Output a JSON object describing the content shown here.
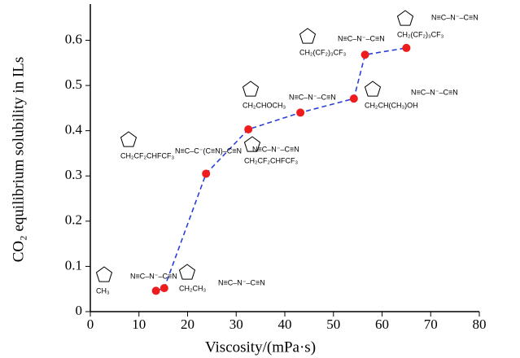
{
  "chart_data": {
    "type": "scatter",
    "x_label": "Viscosity/(mPa·s)",
    "y_label": "CO₂ equilibrium solubility in ILs",
    "series": [
      {
        "color": "#ee1c1c",
        "line_color": "#2a3fd8",
        "x": [
          13.5,
          15.2,
          23.8,
          32.5,
          43.2,
          54.2,
          56.5,
          65.0
        ],
        "values": [
          0.046,
          0.052,
          0.305,
          0.403,
          0.44,
          0.471,
          0.568,
          0.583
        ]
      }
    ],
    "xlim": [
      0,
      80
    ],
    "xticks": [
      0,
      10,
      20,
      30,
      40,
      50,
      60,
      70,
      80
    ],
    "ylim": [
      0,
      0.68
    ],
    "yticks": [
      0,
      0.1,
      0.2,
      0.3,
      0.4,
      0.5,
      0.6
    ],
    "annotations": [
      {
        "substituent": "CH₃",
        "anion": "N≡C–N⁻–C≡N"
      },
      {
        "substituent": "CH₂CH₃",
        "anion": "N≡C–N⁻–C≡N"
      },
      {
        "substituent": "CH₂CF₂CHFCF₃",
        "anion": "N≡C–C⁻(C≡N)–C≡N"
      },
      {
        "substituent": "CH₂CF₂CHFCF₃",
        "anion": "N≡C–N⁻–C≡N"
      },
      {
        "substituent": "CH₂CHOCH₃",
        "anion": "N≡C–N⁻–C≡N"
      },
      {
        "substituent": "CH₂CH(CH₃)OH",
        "anion": "N≡C–N⁻–C≡N"
      },
      {
        "substituent": "CH₂(CF₂)₃CF₃",
        "anion": "N≡C–N⁻–C≡N"
      },
      {
        "substituent": "CH₂(CF₂)₃CF₃",
        "anion": "N≡C–N⁻–C≡N"
      }
    ]
  }
}
